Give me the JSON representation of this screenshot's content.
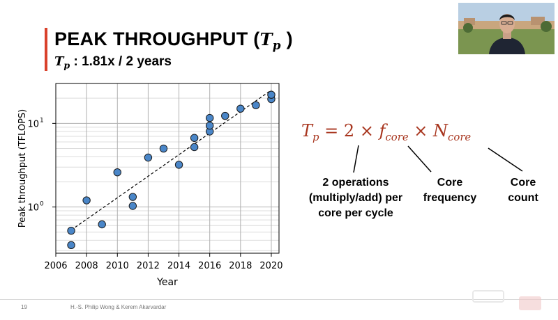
{
  "slide": {
    "title_text": "PEAK THROUGHPUT (",
    "title_symbol": "T",
    "title_symbol_sub": "p",
    "title_close": " )",
    "subtitle_symbol": "T",
    "subtitle_symbol_sub": "p",
    "subtitle_text": " : 1.81x / 2 years",
    "formula": {
      "lhs": "T",
      "lhs_sub": "p",
      "equals": " = 2 × ",
      "f": "f",
      "f_sub": "core",
      "times": " × ",
      "n": "N",
      "n_sub": "core"
    },
    "labels": {
      "ops_line1": "2 operations",
      "ops_line2": "(multiply/add) per",
      "ops_line3": "core per cycle",
      "freq_line1": "Core",
      "freq_line2": "frequency",
      "count_line1": "Core",
      "count_line2": "count"
    },
    "footer": {
      "slide_number": "19",
      "authors": "H.-S. Philip Wong & Kerem Akarvardar"
    },
    "colors": {
      "accent": "#d9412b",
      "formula": "#a8361f",
      "marker": "#4a86c8"
    }
  },
  "chart_data": {
    "type": "scatter",
    "xlabel": "Year",
    "ylabel": "Peak throughput (TFLOPS)",
    "xlim": [
      2006,
      2020.5
    ],
    "ylim": [
      0.28,
      30
    ],
    "yscale": "log",
    "xticks": [
      2006,
      2008,
      2010,
      2012,
      2014,
      2016,
      2018,
      2020
    ],
    "yticks": [
      {
        "value": 1,
        "base": "10",
        "exp": "0"
      },
      {
        "value": 10,
        "base": "10",
        "exp": "1"
      }
    ],
    "grid": true,
    "points": [
      {
        "x": 2007,
        "y": 0.35
      },
      {
        "x": 2007,
        "y": 0.52
      },
      {
        "x": 2008,
        "y": 1.2
      },
      {
        "x": 2009,
        "y": 0.62
      },
      {
        "x": 2010,
        "y": 2.6
      },
      {
        "x": 2011,
        "y": 1.03
      },
      {
        "x": 2011,
        "y": 1.32
      },
      {
        "x": 2012,
        "y": 3.9
      },
      {
        "x": 2013,
        "y": 5.0
      },
      {
        "x": 2014,
        "y": 3.2
      },
      {
        "x": 2015,
        "y": 5.2
      },
      {
        "x": 2015,
        "y": 6.7
      },
      {
        "x": 2016,
        "y": 8.0
      },
      {
        "x": 2016,
        "y": 9.4
      },
      {
        "x": 2016,
        "y": 11.6
      },
      {
        "x": 2017,
        "y": 12.3
      },
      {
        "x": 2018,
        "y": 15.0
      },
      {
        "x": 2019,
        "y": 16.5
      },
      {
        "x": 2020,
        "y": 19.5
      },
      {
        "x": 2020,
        "y": 22.0
      }
    ],
    "trendline": {
      "style": "dashed",
      "from": {
        "x": 2007,
        "y": 0.53
      },
      "to": {
        "x": 2020,
        "y": 25.0
      }
    }
  }
}
